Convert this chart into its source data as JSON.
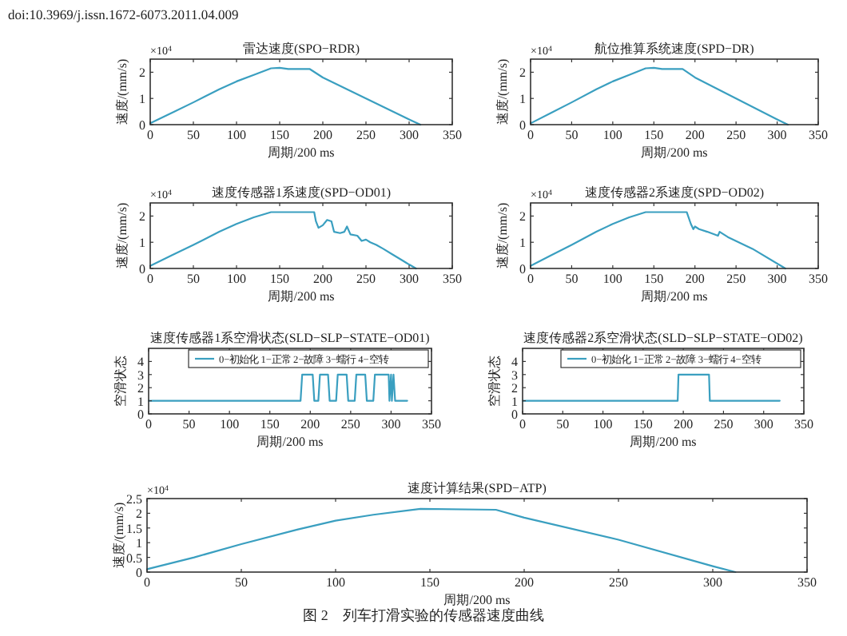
{
  "chart_data": [
    {
      "type": "line",
      "title": "雷达速度(SPO−RDR)",
      "xlabel": "周期/200 ms",
      "ylabel": "速度/(mm/s)",
      "annotations": [
        "×10$^{4}$",
        "doi:10.3969/j.issn.1672-6073.2011.04.009"
      ],
      "xlim": [
        0,
        350
      ],
      "xticks": [
        0,
        50,
        100,
        150,
        200,
        250,
        300,
        350
      ],
      "ylim": [
        0,
        2.5
      ],
      "yticks": [
        0,
        1,
        2
      ],
      "series": [
        {
          "color": "#3a9fc0",
          "x": [
            0,
            25,
            50,
            80,
            100,
            120,
            140,
            150,
            160,
            185,
            200,
            250,
            300,
            313
          ],
          "values": [
            0.05,
            0.45,
            0.85,
            1.35,
            1.65,
            1.9,
            2.15,
            2.17,
            2.12,
            2.12,
            1.8,
            1.0,
            0.2,
            0
          ]
        }
      ]
    },
    {
      "type": "line",
      "title": "航位推算系统速度(SPD−DR)",
      "xlabel": "周期/200 ms",
      "ylabel": "速度/(mm/s)",
      "annotations": [
        "×10$^{4}$"
      ],
      "xlim": [
        0,
        350
      ],
      "xticks": [
        0,
        50,
        100,
        150,
        200,
        250,
        300,
        350
      ],
      "ylim": [
        0,
        2.5
      ],
      "yticks": [
        0,
        1,
        2
      ],
      "series": [
        {
          "color": "#3a9fc0",
          "x": [
            0,
            25,
            50,
            80,
            100,
            120,
            140,
            150,
            160,
            185,
            200,
            250,
            300,
            313
          ],
          "values": [
            0.05,
            0.45,
            0.85,
            1.35,
            1.65,
            1.9,
            2.15,
            2.17,
            2.12,
            2.12,
            1.8,
            1.0,
            0.2,
            0
          ]
        }
      ]
    },
    {
      "type": "line",
      "title": "速度传感器1系速度(SPD−OD01)",
      "xlabel": "周期/200 ms",
      "ylabel": "速度/(mm/s)",
      "annotations": [
        "×10$^{4}$"
      ],
      "xlim": [
        0,
        350
      ],
      "xticks": [
        0,
        50,
        100,
        150,
        200,
        250,
        300,
        350
      ],
      "ylim": [
        0,
        2.5
      ],
      "yticks": [
        0,
        1,
        2
      ],
      "series": [
        {
          "color": "#3a9fc0",
          "x": [
            0,
            25,
            50,
            80,
            100,
            120,
            140,
            190,
            192,
            195,
            200,
            205,
            210,
            213,
            220,
            225,
            228,
            232,
            240,
            245,
            250,
            255,
            262,
            270,
            280,
            290,
            300,
            308
          ],
          "values": [
            0.1,
            0.5,
            0.9,
            1.4,
            1.7,
            1.95,
            2.15,
            2.15,
            1.8,
            1.55,
            1.65,
            1.85,
            1.8,
            1.4,
            1.35,
            1.4,
            1.6,
            1.3,
            1.25,
            1.05,
            1.1,
            1.0,
            0.9,
            0.75,
            0.55,
            0.35,
            0.15,
            0
          ]
        }
      ]
    },
    {
      "type": "line",
      "title": "速度传感器2系速度(SPD−OD02)",
      "xlabel": "周期/200 ms",
      "ylabel": "速度/(mm/s)",
      "annotations": [
        "×10$^{4}$"
      ],
      "xlim": [
        0,
        350
      ],
      "xticks": [
        0,
        50,
        100,
        150,
        200,
        250,
        300,
        350
      ],
      "ylim": [
        0,
        2.5
      ],
      "yticks": [
        0,
        1,
        2
      ],
      "series": [
        {
          "color": "#3a9fc0",
          "x": [
            0,
            25,
            50,
            80,
            100,
            120,
            140,
            190,
            195,
            198,
            200,
            205,
            215,
            228,
            230,
            240,
            270,
            310
          ],
          "values": [
            0.1,
            0.5,
            0.9,
            1.4,
            1.7,
            1.95,
            2.15,
            2.15,
            1.7,
            1.5,
            1.6,
            1.5,
            1.4,
            1.25,
            1.4,
            1.2,
            0.75,
            0
          ]
        }
      ]
    },
    {
      "type": "line",
      "title": "速度传感器1系空滑状态(SLD−SLP−STATE−OD01)",
      "xlabel": "周期/200 ms",
      "ylabel": "空滑状态",
      "legend": "top right",
      "xlim": [
        0,
        350
      ],
      "xticks": [
        0,
        50,
        100,
        150,
        200,
        250,
        300,
        350
      ],
      "ylim": [
        0,
        5
      ],
      "yticks": [
        0,
        1,
        2,
        3,
        4
      ],
      "series": [
        {
          "name": "0−初始化 1−正常 2−故障 3−蠕行 4−空转",
          "color": "#3a9fc0",
          "x": [
            0,
            188,
            190,
            203,
            205,
            210,
            212,
            222,
            224,
            232,
            234,
            245,
            247,
            255,
            257,
            268,
            270,
            278,
            280,
            297,
            298,
            300,
            301,
            303,
            305,
            320
          ],
          "values": [
            1,
            1,
            3,
            3,
            1,
            1,
            3,
            3,
            1,
            1,
            3,
            3,
            1,
            1,
            3,
            3,
            1,
            1,
            3,
            3,
            1,
            3,
            1,
            3,
            1,
            1
          ]
        }
      ]
    },
    {
      "type": "line",
      "title": "速度传感器2系空滑状态(SLD−SLP−STATE−OD02)",
      "xlabel": "周期/200 ms",
      "ylabel": "空滑状态",
      "legend": "top right",
      "xlim": [
        0,
        350
      ],
      "xticks": [
        0,
        50,
        100,
        150,
        200,
        250,
        300,
        350
      ],
      "ylim": [
        0,
        5
      ],
      "yticks": [
        0,
        1,
        2,
        3,
        4
      ],
      "series": [
        {
          "name": "0−初始化 1−正常 2−故障 3−蠕行 4−空转",
          "color": "#3a9fc0",
          "x": [
            0,
            193,
            194,
            232,
            233,
            320
          ],
          "values": [
            1,
            1,
            3,
            3,
            1,
            1
          ]
        }
      ]
    },
    {
      "type": "line",
      "title": "速度计算结果(SPD−ATP)",
      "xlabel": "周期/200 ms",
      "ylabel": "速度/(mm/s)",
      "annotations": [
        "×10$^{4}$",
        "图 2　列车打滑实验的传感器速度曲线"
      ],
      "xlim": [
        0,
        350
      ],
      "xticks": [
        0,
        50,
        100,
        150,
        200,
        250,
        300,
        350
      ],
      "ylim": [
        0,
        2.5
      ],
      "yticks": [
        0,
        0.5,
        1,
        1.5,
        2,
        2.5
      ],
      "series": [
        {
          "color": "#3a9fc0",
          "x": [
            0,
            25,
            50,
            80,
            100,
            120,
            145,
            185,
            200,
            250,
            300,
            312
          ],
          "values": [
            0.1,
            0.5,
            0.95,
            1.45,
            1.75,
            1.95,
            2.15,
            2.12,
            1.85,
            1.1,
            0.2,
            0
          ]
        }
      ]
    }
  ]
}
